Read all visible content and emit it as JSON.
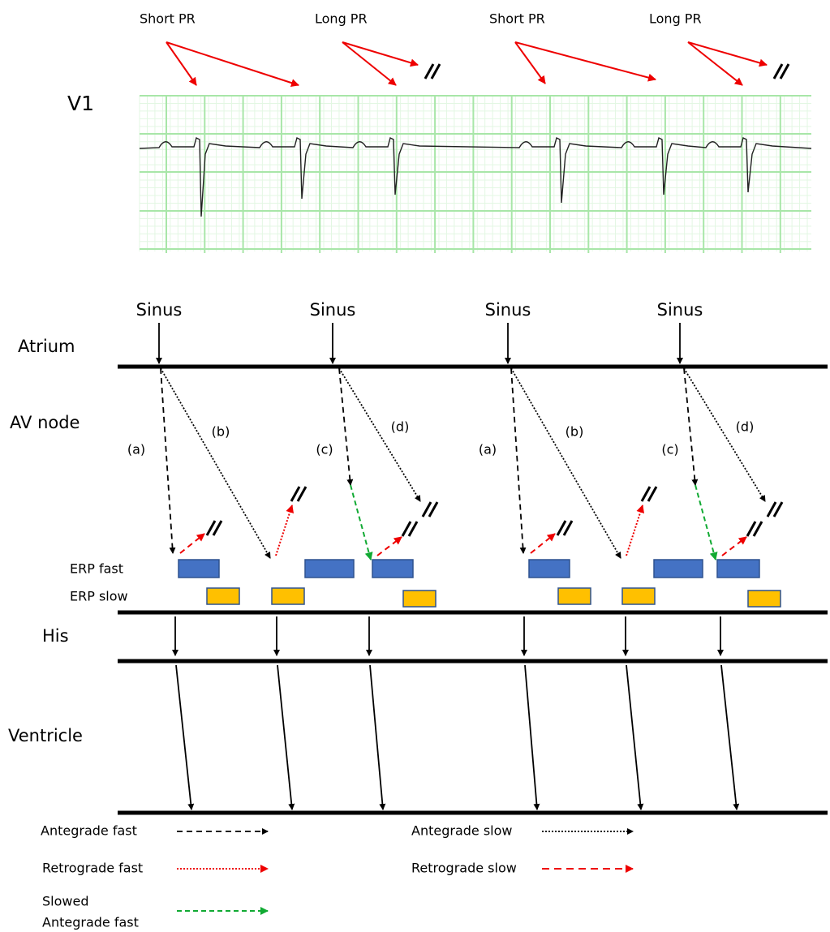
{
  "ecg": {
    "pr_labels": [
      "Short PR",
      "Long PR",
      "Short PR",
      "Long PR"
    ],
    "lead": "V1"
  },
  "ladder": {
    "sinus": [
      "Sinus",
      "Sinus",
      "Sinus",
      "Sinus"
    ],
    "rows": [
      "Atrium",
      "AV node",
      "His",
      "Ventricle"
    ],
    "erp": [
      "ERP fast",
      "ERP slow"
    ],
    "pathway_labels": [
      "(a)",
      "(b)",
      "(c)",
      "(d)",
      "(a)",
      "(b)",
      "(c)",
      "(d)"
    ]
  },
  "legend": [
    {
      "label": "Antegrade fast"
    },
    {
      "label": "Antegrade slow"
    },
    {
      "label": "Retrograde fast"
    },
    {
      "label": "Retrograde slow"
    },
    {
      "lines": [
        "Slowed",
        "Antegrade fast"
      ]
    }
  ]
}
